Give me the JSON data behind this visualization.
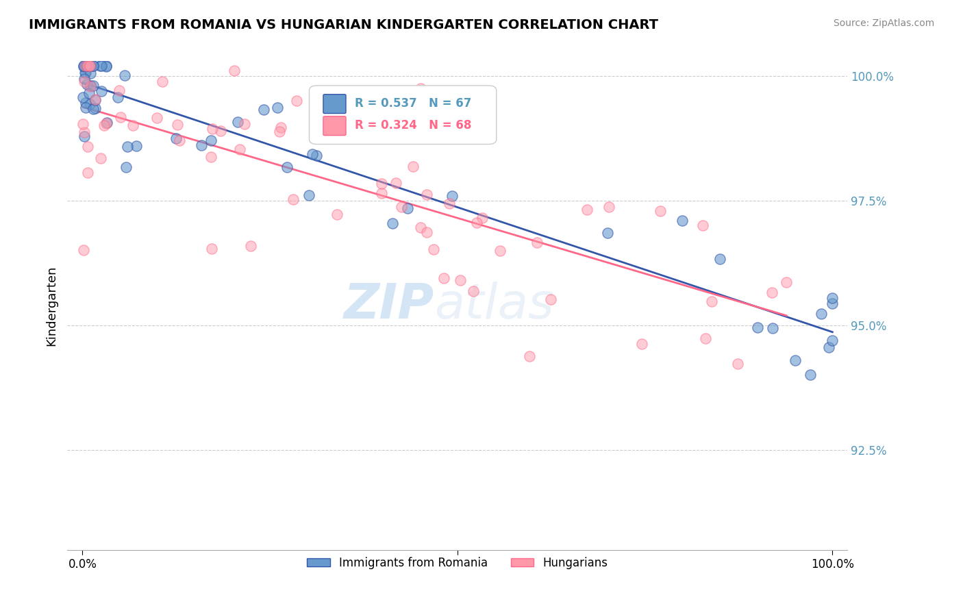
{
  "title": "IMMIGRANTS FROM ROMANIA VS HUNGARIAN KINDERGARTEN CORRELATION CHART",
  "source": "Source: ZipAtlas.com",
  "ylabel": "Kindergarten",
  "yticks": [
    0.925,
    0.95,
    0.975,
    1.0
  ],
  "ytick_labels": [
    "92.5%",
    "95.0%",
    "97.5%",
    "100.0%"
  ],
  "xlim": [
    -0.02,
    1.02
  ],
  "ylim": [
    0.905,
    1.003
  ],
  "legend_label1": "Immigrants from Romania",
  "legend_label2": "Hungarians",
  "R1": 0.537,
  "N1": 67,
  "R2": 0.324,
  "N2": 68,
  "color_blue": "#6699CC",
  "color_pink": "#FF99AA",
  "color_blue_line": "#3355AA",
  "color_pink_line": "#FF6688",
  "color_axis_label": "#5599BB",
  "watermark_zip": "ZIP",
  "watermark_atlas": "atlas"
}
